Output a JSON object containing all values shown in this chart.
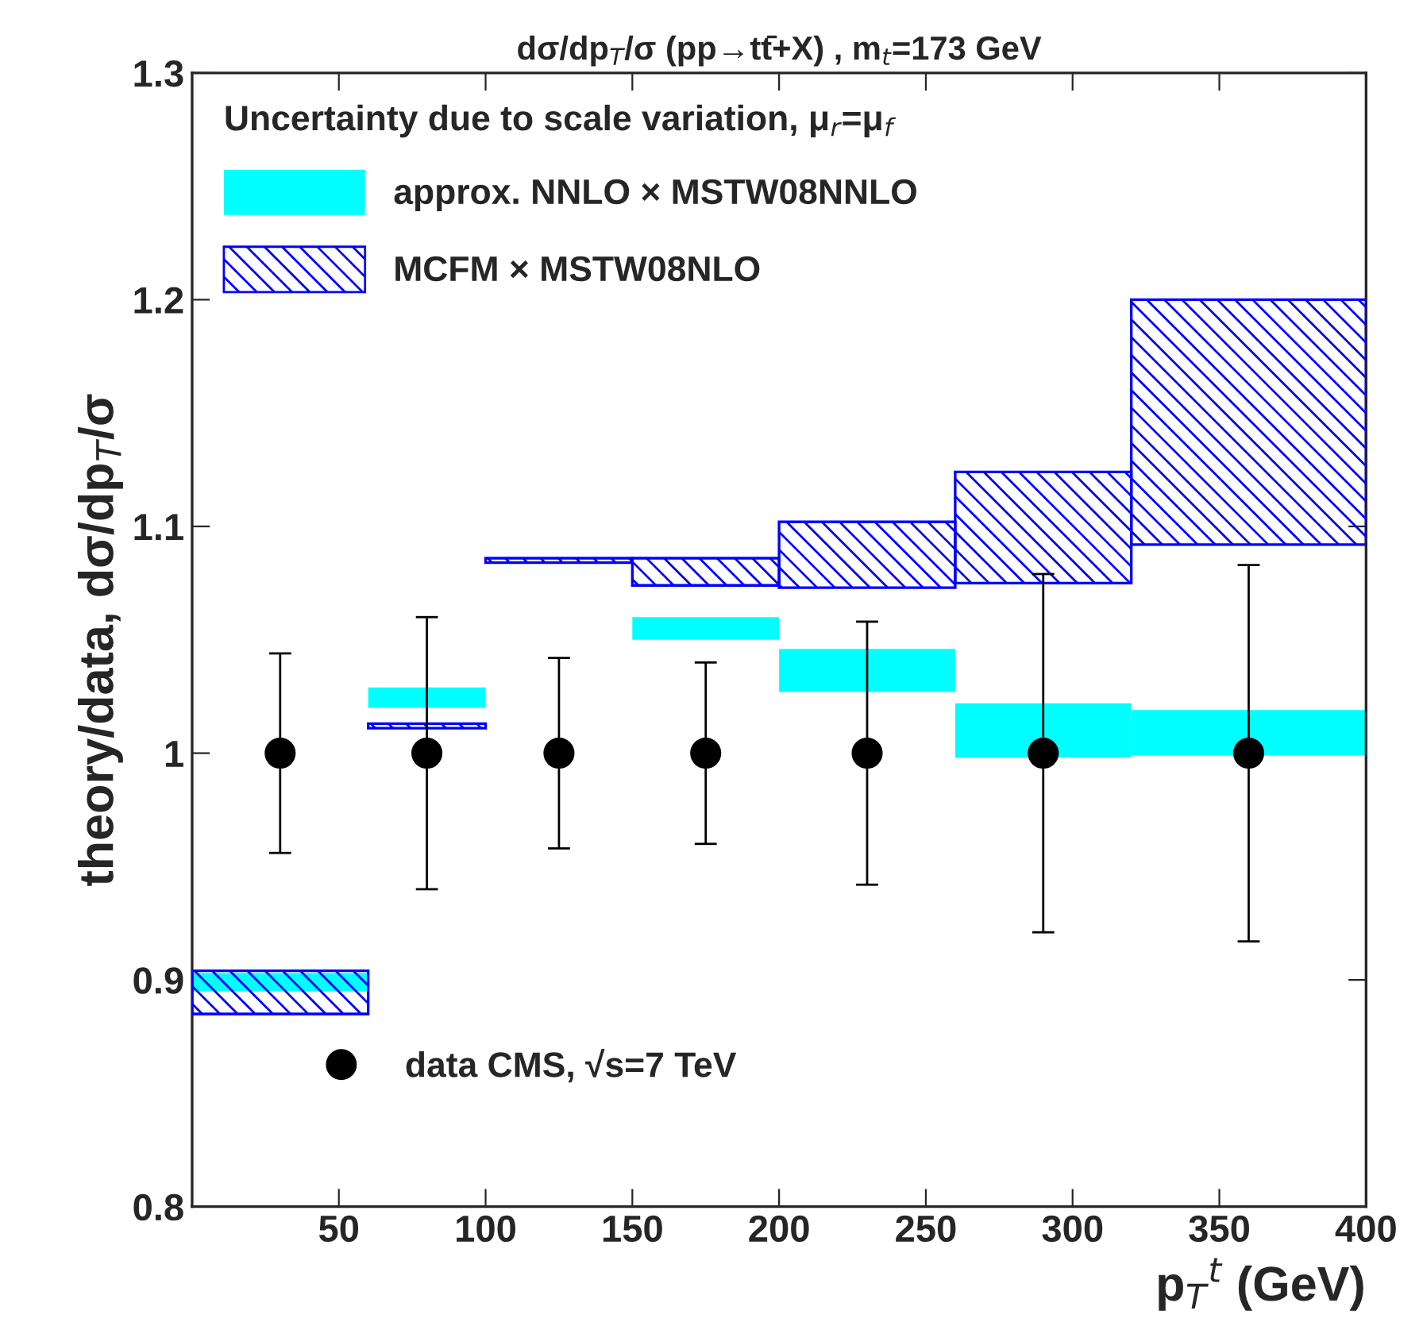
{
  "chart_data": {
    "type": "bar",
    "title": "dσ/dp$_{T}$/σ (pp→tt̄+X) , m$_{t}$=173 GeV",
    "xlabel": "p$_{T}$$^{t}$ (GeV)",
    "ylabel": "theory/data, dσ/dp$_{T}$/σ",
    "legend_title": "Uncertainty due to scale variation, μ$_{r}$=μ$_{f}$",
    "xlim": [
      0,
      400
    ],
    "xticks": [
      50,
      100,
      150,
      200,
      250,
      300,
      350,
      400
    ],
    "ylim": [
      0.8,
      1.3
    ],
    "yticks": [
      0.8,
      0.9,
      {
        "value": 1.0,
        "label": "1"
      },
      1.1,
      1.2,
      1.3
    ],
    "legend": "top left",
    "grid": false,
    "series": [
      {
        "name": "approx. NNLO × MSTW08NNLO",
        "color": "#00ffff",
        "x": [
          30,
          80,
          125,
          175,
          230,
          290,
          360
        ],
        "base": [
          0.895,
          1.02,
          null,
          1.05,
          1.027,
          0.998,
          0.999
        ],
        "values": [
          0.008,
          0.009,
          null,
          0.01,
          0.019,
          0.024,
          0.02
        ]
      },
      {
        "name": "MCFM × MSTW08NLO",
        "color": "#0000ff",
        "x": [
          30,
          80,
          125,
          175,
          230,
          290,
          360
        ],
        "base": [
          0.885,
          1.011,
          1.084,
          1.074,
          1.073,
          1.075,
          1.092
        ],
        "values": [
          0.019,
          0.002,
          0.002,
          0.012,
          0.029,
          0.049,
          0.108
        ]
      },
      {
        "name": "data CMS, √s=7 TeV",
        "type": "scatter",
        "color": "#000000",
        "marker": "circle",
        "x": [
          30,
          80,
          125,
          175,
          230,
          290,
          360
        ],
        "values": [
          1,
          1,
          1,
          1,
          1,
          1,
          1
        ],
        "errors": [
          [
            0.956,
            1.044
          ],
          [
            0.94,
            1.06
          ],
          [
            0.958,
            1.042
          ],
          [
            0.96,
            1.04
          ],
          [
            0.942,
            1.058
          ],
          [
            0.921,
            1.079
          ],
          [
            0.917,
            1.083
          ]
        ]
      }
    ]
  }
}
